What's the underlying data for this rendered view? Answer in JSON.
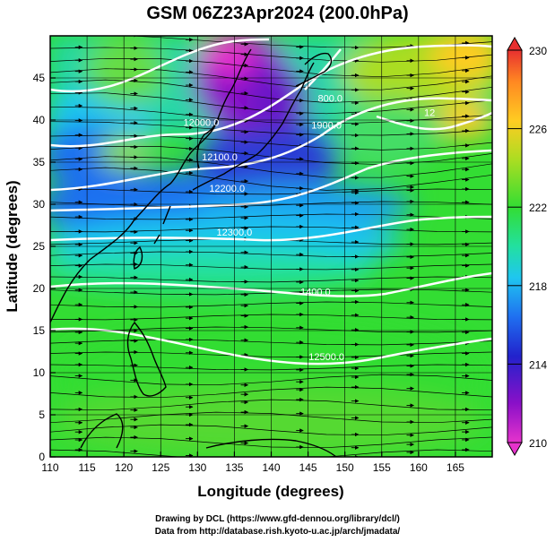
{
  "title": "GSM 06Z23Apr2024 (200.0hPa)",
  "xlabel": "Longitude (degrees)",
  "ylabel": "Latitude  (degrees)",
  "x_ticks": [
    "110",
    "115",
    "120",
    "125",
    "130",
    "135",
    "140",
    "145",
    "150",
    "155",
    "160",
    "165"
  ],
  "y_ticks": [
    "0",
    "5",
    "10",
    "15",
    "20",
    "25",
    "30",
    "35",
    "40",
    "45"
  ],
  "colorbar": {
    "ticks": [
      "210",
      "214",
      "218",
      "222",
      "226",
      "230"
    ],
    "colors": {
      "210": "#e633cc",
      "212": "#8a10c8",
      "214": "#2222cc",
      "216": "#1f6ff0",
      "218": "#1fc6f0",
      "220": "#22e0a0",
      "222": "#33dd33",
      "224": "#aadd22",
      "226": "#ffcc22",
      "228": "#ff8822",
      "230": "#e83030"
    }
  },
  "contour_labels": [
    {
      "text": "12000.0",
      "lon": 130.5,
      "lat": 39.3
    },
    {
      "text": "12100.0",
      "lon": 133.0,
      "lat": 35.2
    },
    {
      "text": "12200.0",
      "lon": 134.0,
      "lat": 31.5
    },
    {
      "text": "12300.0",
      "lon": 135.0,
      "lat": 26.3
    },
    {
      "text": "1400.0",
      "lon": 146.0,
      "lat": 19.2
    },
    {
      "text": "12500.0",
      "lon": 147.5,
      "lat": 11.5
    },
    {
      "text": "800.0",
      "lon": 148.0,
      "lat": 42.2
    },
    {
      "text": "1900.0",
      "lon": 147.5,
      "lat": 39.0
    },
    {
      "text": "12",
      "lon": 161.5,
      "lat": 40.5
    }
  ],
  "credits": {
    "line1": "Drawing by DCL (https://www.gfd-dennou.org/library/dcl/)",
    "line2": "Data from http://database.rish.kyoto-u.ac.jp/arch/jmadata/"
  }
}
